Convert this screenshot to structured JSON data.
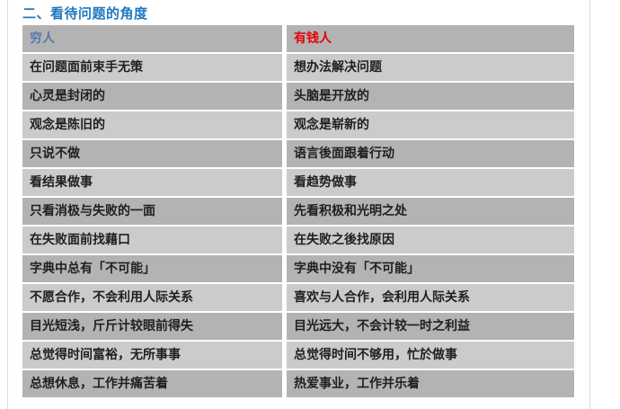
{
  "section": {
    "title": "二、看待问题的角度"
  },
  "colors": {
    "title_blue": "#1e78c0",
    "poor_header_blue": "#5878ad",
    "rich_header_red": "#e60000",
    "row_dark_gray": "#b3b3b3",
    "row_light_gray": "#cbcbcb",
    "page_border_gray": "#dadada"
  },
  "table": {
    "headers": [
      {
        "label": "穷人"
      },
      {
        "label": "有钱人"
      }
    ],
    "rows": [
      [
        "在问题面前束手无策",
        "想办法解决问题"
      ],
      [
        "心灵是封闭的",
        "头脑是开放的"
      ],
      [
        "观念是陈旧的",
        "观念是崭新的"
      ],
      [
        "只说不做",
        "语言後面跟着行动"
      ],
      [
        "看结果做事",
        "看趋势做事"
      ],
      [
        "只看消极与失败的一面",
        "先看积极和光明之处"
      ],
      [
        "在失败面前找藉口",
        "在失败之後找原因"
      ],
      [
        "字典中总有「不可能」",
        "字典中没有「不可能」"
      ],
      [
        "不愿合作，不会利用人际关系",
        "喜欢与人合作，会利用人际关系"
      ],
      [
        "目光短浅，斤斤计较眼前得失",
        "目光远大，不会计较一时之利益"
      ],
      [
        "总觉得时间富裕，无所事事",
        "总觉得时间不够用，忙於做事"
      ],
      [
        "总想休息，工作并痛苦着",
        "热爱事业，工作并乐着"
      ]
    ]
  }
}
